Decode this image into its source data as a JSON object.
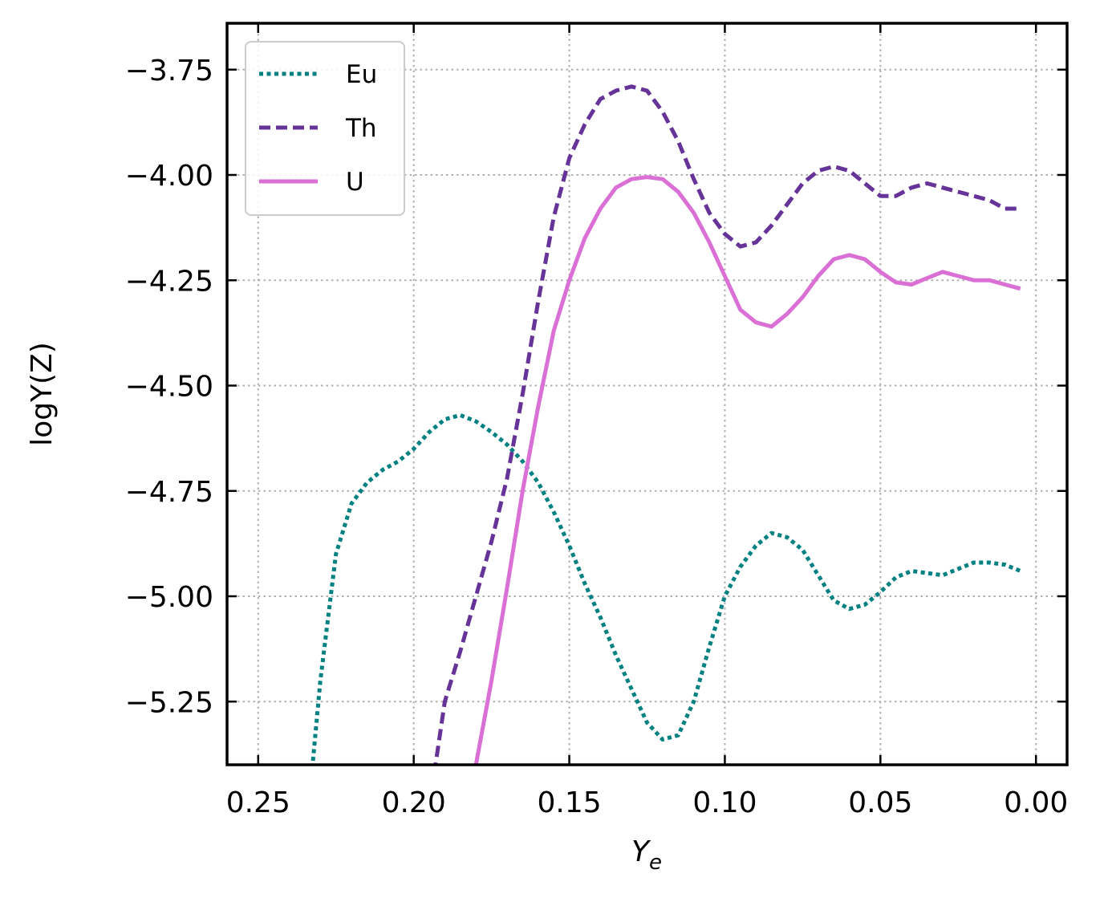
{
  "chart_data": {
    "type": "line",
    "xlabel_main": "Y",
    "xlabel_sub": "e",
    "ylabel": "logY(Z)",
    "xlim": [
      0.26,
      -0.01
    ],
    "ylim": [
      -5.4,
      -3.64
    ],
    "xticks": [
      0.25,
      0.2,
      0.15,
      0.1,
      0.05,
      0.0
    ],
    "xtick_labels": [
      "0.25",
      "0.20",
      "0.15",
      "0.10",
      "0.05",
      "0.00"
    ],
    "yticks": [
      -3.75,
      -4.0,
      -4.25,
      -4.5,
      -4.75,
      -5.0,
      -5.25
    ],
    "ytick_labels": [
      "−3.75",
      "−4.00",
      "−4.25",
      "−4.50",
      "−4.75",
      "−5.00",
      "−5.25"
    ],
    "grid": true,
    "legend_position": "top-left",
    "series": [
      {
        "name": "Eu",
        "color": "#008080",
        "style": "dotted",
        "x": [
          0.24,
          0.2325,
          0.23,
          0.225,
          0.22,
          0.215,
          0.21,
          0.205,
          0.2,
          0.195,
          0.19,
          0.185,
          0.18,
          0.175,
          0.17,
          0.165,
          0.16,
          0.155,
          0.15,
          0.145,
          0.14,
          0.135,
          0.13,
          0.125,
          0.12,
          0.115,
          0.11,
          0.105,
          0.1,
          0.095,
          0.09,
          0.085,
          0.08,
          0.075,
          0.07,
          0.065,
          0.06,
          0.055,
          0.05,
          0.045,
          0.04,
          0.035,
          0.03,
          0.025,
          0.02,
          0.015,
          0.01,
          0.005
        ],
        "y": [
          -5.6,
          -5.4,
          -5.2,
          -4.9,
          -4.78,
          -4.73,
          -4.7,
          -4.68,
          -4.65,
          -4.61,
          -4.58,
          -4.57,
          -4.585,
          -4.61,
          -4.64,
          -4.68,
          -4.73,
          -4.8,
          -4.88,
          -4.97,
          -5.05,
          -5.14,
          -5.22,
          -5.3,
          -5.34,
          -5.33,
          -5.25,
          -5.12,
          -5.0,
          -4.93,
          -4.88,
          -4.85,
          -4.86,
          -4.89,
          -4.95,
          -5.01,
          -5.03,
          -5.02,
          -4.99,
          -4.955,
          -4.94,
          -4.945,
          -4.95,
          -4.935,
          -4.92,
          -4.92,
          -4.925,
          -4.94
        ]
      },
      {
        "name": "Th",
        "color": "#663399",
        "style": "dashed",
        "x": [
          0.195,
          0.19,
          0.185,
          0.18,
          0.175,
          0.17,
          0.165,
          0.16,
          0.155,
          0.15,
          0.145,
          0.14,
          0.135,
          0.13,
          0.125,
          0.12,
          0.115,
          0.11,
          0.105,
          0.1,
          0.095,
          0.09,
          0.085,
          0.08,
          0.075,
          0.07,
          0.065,
          0.06,
          0.055,
          0.05,
          0.045,
          0.04,
          0.035,
          0.03,
          0.025,
          0.02,
          0.015,
          0.01,
          0.005
        ],
        "y": [
          -5.5,
          -5.25,
          -5.13,
          -5.0,
          -4.87,
          -4.72,
          -4.52,
          -4.3,
          -4.1,
          -3.96,
          -3.88,
          -3.82,
          -3.8,
          -3.79,
          -3.8,
          -3.85,
          -3.92,
          -4.01,
          -4.09,
          -4.14,
          -4.17,
          -4.16,
          -4.12,
          -4.07,
          -4.02,
          -3.99,
          -3.98,
          -3.99,
          -4.02,
          -4.05,
          -4.05,
          -4.03,
          -4.02,
          -4.03,
          -4.04,
          -4.05,
          -4.06,
          -4.08,
          -4.08
        ]
      },
      {
        "name": "U",
        "color": "#da70d6",
        "style": "solid",
        "x": [
          0.18,
          0.175,
          0.17,
          0.165,
          0.16,
          0.155,
          0.15,
          0.145,
          0.14,
          0.135,
          0.13,
          0.125,
          0.12,
          0.115,
          0.11,
          0.105,
          0.1,
          0.095,
          0.09,
          0.085,
          0.08,
          0.075,
          0.07,
          0.065,
          0.06,
          0.055,
          0.05,
          0.045,
          0.04,
          0.035,
          0.03,
          0.025,
          0.02,
          0.015,
          0.01,
          0.005
        ],
        "y": [
          -5.4,
          -5.2,
          -4.98,
          -4.75,
          -4.55,
          -4.37,
          -4.25,
          -4.15,
          -4.08,
          -4.03,
          -4.01,
          -4.005,
          -4.01,
          -4.04,
          -4.09,
          -4.16,
          -4.24,
          -4.32,
          -4.35,
          -4.36,
          -4.33,
          -4.29,
          -4.24,
          -4.2,
          -4.19,
          -4.2,
          -4.23,
          -4.255,
          -4.26,
          -4.245,
          -4.23,
          -4.24,
          -4.25,
          -4.25,
          -4.26,
          -4.27
        ]
      }
    ]
  }
}
